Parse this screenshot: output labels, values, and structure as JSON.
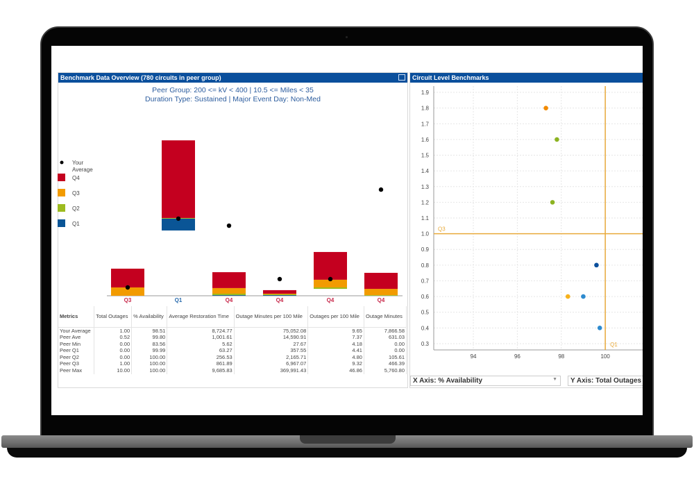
{
  "left_panel": {
    "title": "Benchmark Data Overview (780 circuits in peer group)",
    "subtitle1": "Peer Group: 200 <= kV < 400 | 10.5 <= Miles < 35",
    "subtitle2": "Duration Type: Sustained | Major Event Day: Non-Med"
  },
  "right_panel": {
    "title": "Circuit Level Benchmarks",
    "x_axis_select": "X Axis: % Availability",
    "y_axis_select": "Y Axis: Total Outages"
  },
  "colors": {
    "Q4": "#c4001f",
    "Q3": "#f29b00",
    "Q2": "#9dbb1f",
    "Q1": "#0a5596",
    "header": "#0a4f9c"
  },
  "chart_data": [
    {
      "type": "bar",
      "title": "Benchmark Data Overview",
      "note": "stacked quartile bars, relative scale 0-100 per metric",
      "legend": [
        "Your Average",
        "Q4",
        "Q3",
        "Q2",
        "Q1"
      ],
      "categories": [
        "Total Outages",
        "% Availability",
        "Average Restoration Time",
        "Outage Minutes per 100 Mile",
        "Outages per 100 Mile",
        "Outage Minutes"
      ],
      "quartile_labels": [
        "Q3",
        "Q1",
        "Q4",
        "Q4",
        "Q4",
        "Q4"
      ],
      "ylim": [
        0,
        100
      ],
      "bars": [
        {
          "Q1": [
            0,
            0
          ],
          "Q2": [
            0,
            0
          ],
          "Q3": [
            0,
            5.2
          ],
          "Q4": [
            5.2,
            16.9
          ],
          "your_average": 5.2
        },
        {
          "Q1": [
            40.7,
            48.1
          ],
          "Q2": [
            48.1,
            48.5
          ],
          "Q3": [
            48.5,
            48.5
          ],
          "Q4": [
            48.5,
            96.9
          ],
          "your_average": 48.1
        },
        {
          "Q1": [
            0,
            0.4
          ],
          "Q2": [
            0.4,
            1.3
          ],
          "Q3": [
            1.3,
            4.8
          ],
          "Q4": [
            4.8,
            14.7
          ],
          "your_average": 43.7
        },
        {
          "Q1": [
            0,
            0.4
          ],
          "Q2": [
            0.4,
            0.9
          ],
          "Q3": [
            0.9,
            1.3
          ],
          "Q4": [
            1.3,
            3.5
          ],
          "your_average": 10.4
        },
        {
          "Q1": [
            4.3,
            4.3
          ],
          "Q2": [
            4.3,
            5.2
          ],
          "Q3": [
            5.2,
            10
          ],
          "Q4": [
            10,
            27.3
          ],
          "your_average": 10.4
        },
        {
          "Q1": [
            0,
            0
          ],
          "Q2": [
            0,
            0.4
          ],
          "Q3": [
            0.4,
            4.3
          ],
          "Q4": [
            4.3,
            14.3
          ],
          "your_average": 66.2
        }
      ]
    },
    {
      "type": "scatter",
      "title": "Circuit Level Benchmarks",
      "xlabel": "% Availability",
      "ylabel": "Total Outages",
      "xlim": [
        92.2,
        101.7
      ],
      "ylim": [
        0.26,
        1.94
      ],
      "xticks": [
        94,
        96,
        98,
        100
      ],
      "yticks": [
        1.9,
        1.8,
        1.7,
        1.6,
        1.5,
        1.4,
        1.3,
        1.2,
        1.1,
        1.0,
        0.9,
        0.8,
        0.7,
        0.6,
        0.5,
        0.4,
        0.3
      ],
      "ref_lines": [
        {
          "axis": "y",
          "value": 1.0,
          "label": "Q3"
        },
        {
          "axis": "x",
          "value": 100,
          "label": "Q1"
        }
      ],
      "points": [
        {
          "x": 97.3,
          "y": 1.8,
          "color": "#f28a00"
        },
        {
          "x": 97.8,
          "y": 1.6,
          "color": "#8cb321"
        },
        {
          "x": 97.6,
          "y": 1.2,
          "color": "#8cb321"
        },
        {
          "x": 99.6,
          "y": 0.8,
          "color": "#0a4f9c"
        },
        {
          "x": 98.3,
          "y": 0.6,
          "color": "#f7b21c"
        },
        {
          "x": 99.0,
          "y": 0.6,
          "color": "#2e8bcf"
        },
        {
          "x": 99.75,
          "y": 0.4,
          "color": "#2e8bcf"
        }
      ]
    }
  ],
  "table": {
    "headers": [
      "Metrics",
      "Total Outages",
      "% Availability",
      "Average Restoration Time",
      "Outage Minutes per 100 Mile",
      "Outages per 100 Mile",
      "Outage Minutes"
    ],
    "rows": [
      [
        "Your Average",
        "1.00",
        "98.51",
        "8,724.77",
        "75,052.08",
        "9.65",
        "7,866.58"
      ],
      [
        "Peer Ave",
        "0.52",
        "99.80",
        "1,001.61",
        "14,590.91",
        "7.37",
        "631.03"
      ],
      [
        "Peer Min",
        "0.00",
        "83.56",
        "5.62",
        "27.67",
        "4.18",
        "0.00"
      ],
      [
        "Peer Q1",
        "0.00",
        "99.99",
        "63.27",
        "357.55",
        "4.41",
        "0.00"
      ],
      [
        "Peer Q2",
        "0.00",
        "100.00",
        "256.53",
        "2,165.71",
        "4.80",
        "105.61"
      ],
      [
        "Peer Q3",
        "1.00",
        "100.00",
        "861.89",
        "6,967.07",
        "9.32",
        "466.39"
      ],
      [
        "Peer Max",
        "10.00",
        "100.00",
        "9,685.83",
        "369,991.43",
        "46.86",
        "5,760.80"
      ]
    ]
  }
}
